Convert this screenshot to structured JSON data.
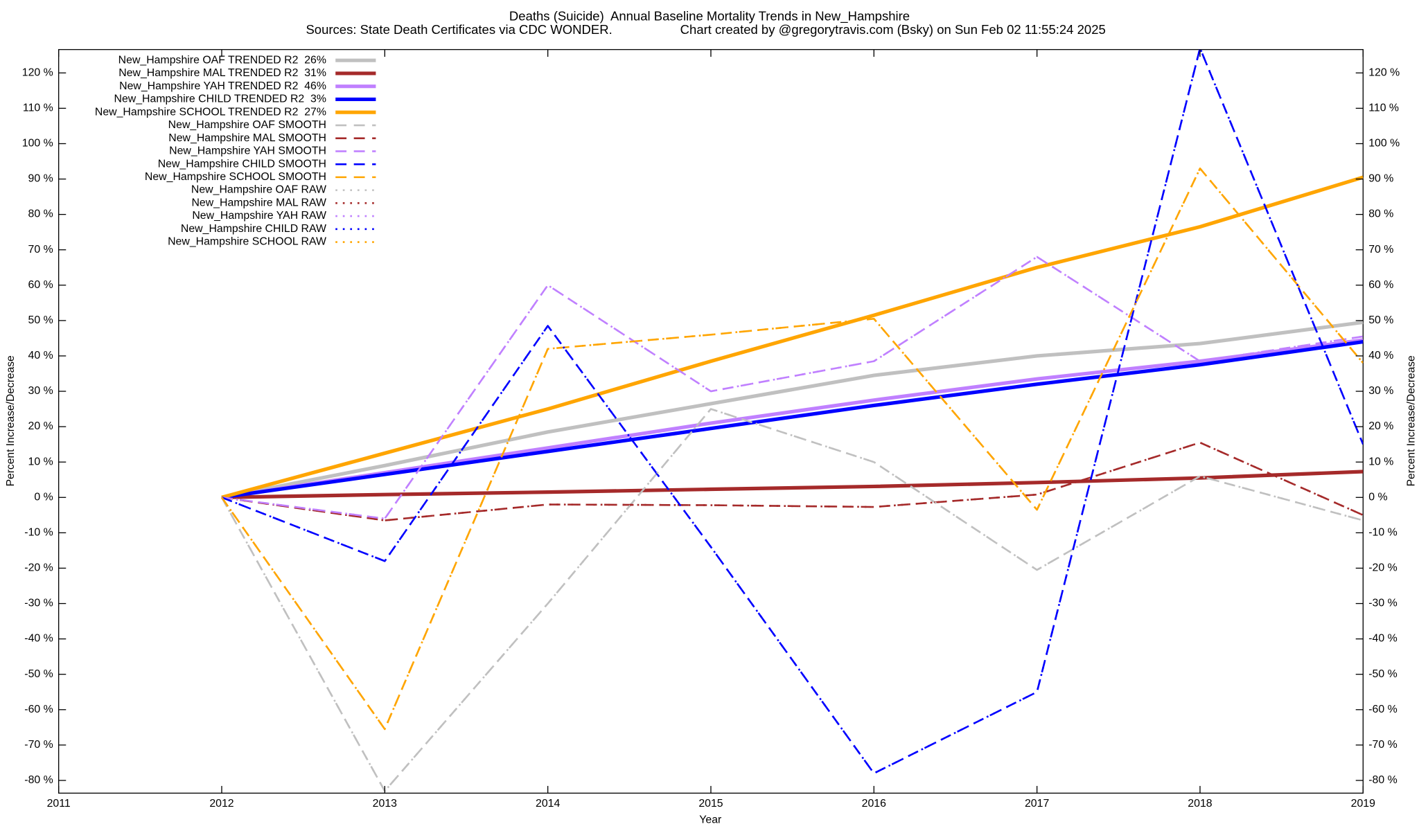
{
  "chart_data": {
    "type": "line",
    "title": "Deaths (Suicide)  Annual Baseline Mortality Trends in New_Hampshire",
    "source": "Sources: State Death Certificates via CDC WONDER.",
    "credit": "Chart created by @gregorytravis.com (Bsky) on Sun Feb 02 11:55:24 2025",
    "x_label": "Year",
    "y_label": "Percent Increase/Decrease",
    "y2_label": "Percent Increase/Decrease",
    "x": [
      2012,
      2013,
      2014,
      2015,
      2016,
      2017,
      2018,
      2019
    ],
    "xlim": [
      2011,
      2019
    ],
    "xticks": [
      2011,
      2012,
      2013,
      2014,
      2015,
      2016,
      2017,
      2018,
      2019
    ],
    "ylim": [
      -83.6,
      126.6
    ],
    "yticks": [
      {
        "value": -80,
        "label": "-80 %"
      },
      {
        "value": -70,
        "label": "-70 %"
      },
      {
        "value": -60,
        "label": "-60 %"
      },
      {
        "value": -50,
        "label": "-50 %"
      },
      {
        "value": -40,
        "label": "-40 %"
      },
      {
        "value": -30,
        "label": "-30 %"
      },
      {
        "value": -20,
        "label": "-20 %"
      },
      {
        "value": -10,
        "label": "-10 %"
      },
      {
        "value": 0,
        "label": "0 %"
      },
      {
        "value": 10,
        "label": "10 %"
      },
      {
        "value": 20,
        "label": "20 %"
      },
      {
        "value": 30,
        "label": "30 %"
      },
      {
        "value": 40,
        "label": "40 %"
      },
      {
        "value": 50,
        "label": "50 %"
      },
      {
        "value": 60,
        "label": "60 %"
      },
      {
        "value": 70,
        "label": "70 %"
      },
      {
        "value": 80,
        "label": "80 %"
      },
      {
        "value": 90,
        "label": "90 %"
      },
      {
        "value": 100,
        "label": "100 %"
      },
      {
        "value": 110,
        "label": "110 %"
      },
      {
        "value": 120,
        "label": "120 %"
      }
    ],
    "grid": false,
    "legend": "top-left",
    "series": [
      {
        "name": "New_Hampshire OAF TRENDED R2  26%",
        "color": "#c0c0c0",
        "style": "solid",
        "values": [
          0,
          9,
          18.5,
          26.5,
          34.5,
          40,
          43.5,
          49.5
        ]
      },
      {
        "name": "New_Hampshire MAL TRENDED R2  31%",
        "color": "#a52a2a",
        "style": "solid",
        "values": [
          0,
          0.8,
          1.5,
          2.3,
          3.1,
          4.2,
          5.5,
          7.3
        ]
      },
      {
        "name": "New_Hampshire YAH TRENDED R2  46%",
        "color": "#c080ff",
        "style": "solid",
        "values": [
          0,
          7,
          14,
          21,
          27.5,
          33.5,
          38.5,
          44.5
        ]
      },
      {
        "name": "New_Hampshire CHILD TRENDED R2  3%",
        "color": "#0000ff",
        "style": "solid",
        "values": [
          0,
          6.5,
          13,
          19.5,
          26,
          32,
          37.5,
          44
        ]
      },
      {
        "name": "New_Hampshire SCHOOL TRENDED R2  27%",
        "color": "#ffa500",
        "style": "solid",
        "values": [
          0,
          12.5,
          25,
          38.5,
          51.5,
          65,
          76.5,
          90.5
        ]
      },
      {
        "name": "New_Hampshire OAF SMOOTH",
        "color": "#c0c0c0",
        "style": "dashed",
        "values": [
          0,
          -83,
          -30,
          25,
          10,
          -20.5,
          6,
          -6.5
        ]
      },
      {
        "name": "New_Hampshire MAL SMOOTH",
        "color": "#a52a2a",
        "style": "dashed",
        "values": [
          0,
          -6.5,
          -2,
          -2.2,
          -2.7,
          0.8,
          15.5,
          -5
        ]
      },
      {
        "name": "New_Hampshire YAH SMOOTH",
        "color": "#c080ff",
        "style": "dashed",
        "values": [
          0,
          -6,
          60,
          30,
          38.5,
          68,
          38.5,
          45.5
        ]
      },
      {
        "name": "New_Hampshire CHILD SMOOTH",
        "color": "#0000ff",
        "style": "dashed",
        "values": [
          0,
          -18,
          48.5,
          -14,
          -78,
          -55,
          127,
          15
        ]
      },
      {
        "name": "New_Hampshire SCHOOL SMOOTH",
        "color": "#ffa500",
        "style": "dashed",
        "values": [
          0,
          -65.5,
          42,
          46,
          50.5,
          -3.5,
          93,
          38
        ]
      },
      {
        "name": "New_Hampshire OAF RAW",
        "color": "#c0c0c0",
        "style": "dotted",
        "values": [
          0,
          -83,
          -30,
          25,
          10,
          -20.5,
          6,
          -6.5
        ]
      },
      {
        "name": "New_Hampshire MAL RAW",
        "color": "#a52a2a",
        "style": "dotted",
        "values": [
          0,
          -6.5,
          -2,
          -2.2,
          -2.7,
          0.8,
          15.5,
          -5
        ]
      },
      {
        "name": "New_Hampshire YAH RAW",
        "color": "#c080ff",
        "style": "dotted",
        "values": [
          0,
          -6,
          60,
          30,
          38.5,
          68,
          38.5,
          45.5
        ]
      },
      {
        "name": "New_Hampshire CHILD RAW",
        "color": "#0000ff",
        "style": "dotted",
        "values": [
          0,
          -18,
          48.5,
          -14,
          -78,
          -55,
          127,
          15
        ]
      },
      {
        "name": "New_Hampshire SCHOOL RAW",
        "color": "#ffa500",
        "style": "dotted",
        "values": [
          0,
          -65.5,
          42,
          46,
          50.5,
          -3.5,
          93,
          38
        ]
      }
    ]
  }
}
